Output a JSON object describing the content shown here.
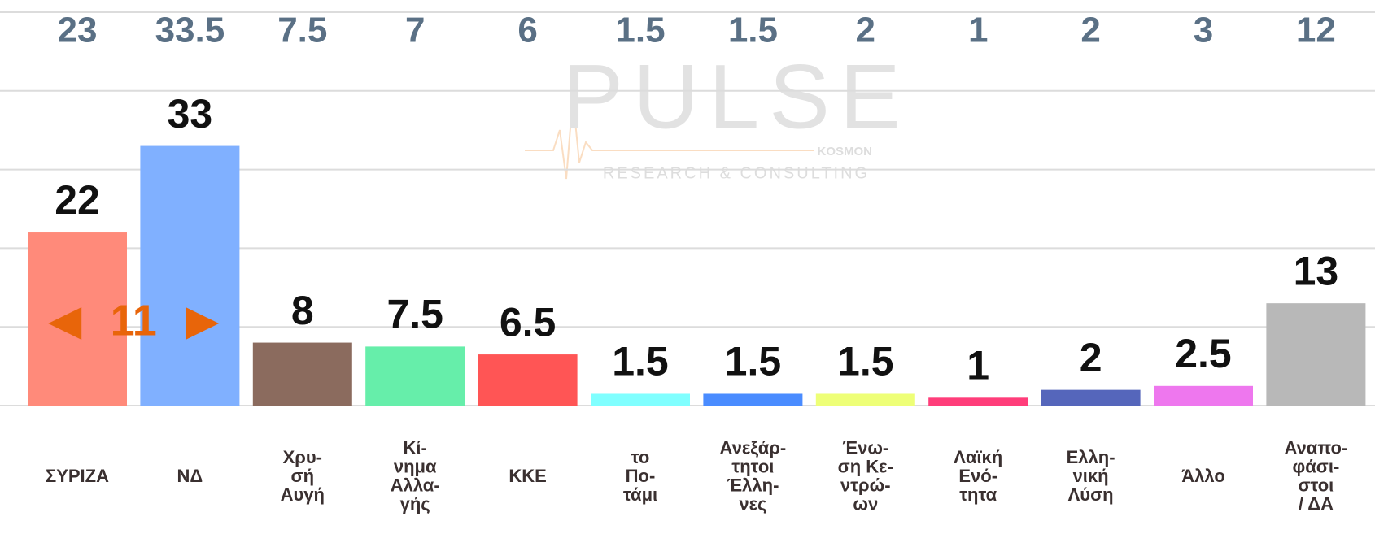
{
  "chart_data": {
    "type": "bar",
    "categories": [
      [
        "ΣΥΡΙΖΑ"
      ],
      [
        "ΝΔ"
      ],
      [
        "Χρυ-",
        "σή",
        "Αυγή"
      ],
      [
        "Κί-",
        "νημα",
        "Αλλα-",
        "γής"
      ],
      [
        "ΚΚΕ"
      ],
      [
        "το",
        "Πο-",
        "τάμι"
      ],
      [
        "Ανεξάρ-",
        "τητοι",
        "Έλλη-",
        "νες"
      ],
      [
        "Ένω-",
        "ση Κε-",
        "ντρώ-",
        "ων"
      ],
      [
        "Λαϊκή",
        "Ενό-",
        "τητα"
      ],
      [
        "Ελλη-",
        "νική",
        "Λύση"
      ],
      [
        "Άλλο"
      ],
      [
        "Αναπο-",
        "φάσι-",
        "στοι",
        "/ ΔΑ"
      ]
    ],
    "values": [
      22,
      33,
      8,
      7.5,
      6.5,
      1.5,
      1.5,
      1.5,
      1,
      2,
      2.5,
      13
    ],
    "previous_values": [
      23,
      33.5,
      7.5,
      7,
      6,
      1.5,
      1.5,
      2,
      1,
      2,
      3,
      12
    ],
    "colors": [
      "#ff8a7a",
      "#80b0ff",
      "#8b6b5e",
      "#66eeaa",
      "#ff5555",
      "#80ffff",
      "#4a8cff",
      "#eeff77",
      "#ff3d7a",
      "#5566bb",
      "#ee77ee",
      "#b8b8b8"
    ],
    "ylim": [
      0,
      50
    ],
    "yticks": [
      0,
      10,
      20,
      30,
      40,
      50
    ],
    "grid": true,
    "annotation": "11",
    "watermark": {
      "title": "PULSE",
      "subtitle": "RESEARCH & CONSULTING",
      "tag": "KOSMON"
    }
  }
}
